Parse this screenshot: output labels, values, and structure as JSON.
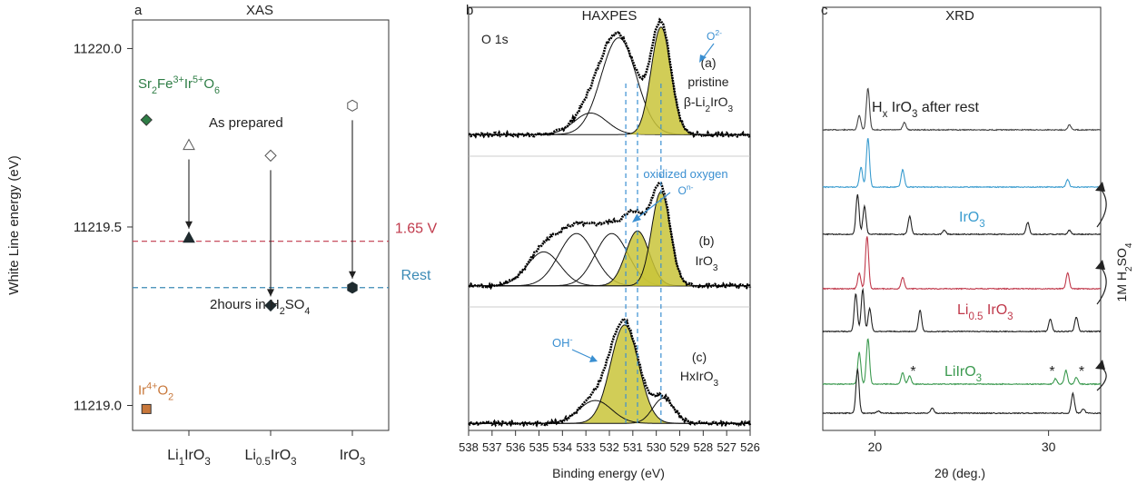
{
  "chart_data": [
    {
      "panel_label": "a",
      "type": "scatter",
      "title": "XAS",
      "ylabel": "White Line energy (eV)",
      "ylim": [
        11218.93,
        11220.08
      ],
      "y_ticks": [
        "11220.0",
        "11219.5",
        "11219.0"
      ],
      "y_tick_values": [
        11220.0,
        11219.5,
        11219.0
      ],
      "categories": [
        {
          "base": "Li",
          "sub": "1",
          "rest": "IrO",
          "sub2": "3"
        },
        {
          "base": "Li",
          "sub": "0.5",
          "rest": "IrO",
          "sub2": "3"
        },
        {
          "base": "IrO",
          "sub": "3",
          "rest": "",
          "sub2": ""
        }
      ],
      "as_prepared": {
        "label": "As prepared",
        "points": [
          {
            "x": 0,
            "y": 11219.73,
            "marker": "triangle"
          },
          {
            "x": 1,
            "y": 11219.7,
            "marker": "diamond"
          },
          {
            "x": 2,
            "y": 11219.84,
            "marker": "hexagon"
          }
        ]
      },
      "after": {
        "label_prefix": "2hours in H",
        "label_sub1": "2",
        "label_mid": "SO",
        "label_sub2": "4",
        "points": [
          {
            "x": 0,
            "y": 11219.47,
            "marker": "triangle"
          },
          {
            "x": 1,
            "y": 11219.28,
            "marker": "diamond"
          },
          {
            "x": 2,
            "y": 11219.33,
            "marker": "hexagon"
          }
        ]
      },
      "references": [
        {
          "x": -0.52,
          "y": 11219.8,
          "color": "#2e7d45",
          "marker": "diamond",
          "label_parts": [
            [
              "Sr",
              ""
            ],
            [
              "2",
              "sub"
            ],
            [
              "Fe",
              ""
            ],
            [
              "3+",
              "sup"
            ],
            [
              "Ir",
              ""
            ],
            [
              "5+",
              "sup"
            ],
            [
              "O",
              ""
            ],
            [
              "6",
              "sub"
            ]
          ]
        },
        {
          "x": -0.52,
          "y": 11218.99,
          "color": "#c8773a",
          "marker": "square",
          "label_parts": [
            [
              "Ir",
              ""
            ],
            [
              "4+",
              "sup"
            ],
            [
              "O",
              ""
            ],
            [
              "2",
              "sub"
            ]
          ]
        }
      ],
      "hlines": [
        {
          "y": 11219.46,
          "label": "1.65 V",
          "color": "#c0394b"
        },
        {
          "y": 11219.33,
          "label": "Rest",
          "color": "#3b8ab5"
        }
      ]
    },
    {
      "panel_label": "b",
      "type": "line",
      "title": "HAXPES",
      "xlabel": "Binding energy (eV)",
      "xlim": [
        538,
        526
      ],
      "x_ticks": [
        538,
        537,
        536,
        535,
        534,
        533,
        532,
        531,
        530,
        529,
        528,
        527,
        526
      ],
      "core_level": "O 1s",
      "fill_color": "#c9c43a",
      "vlines": [
        531.3,
        530.8,
        529.8
      ],
      "series": [
        {
          "id": "a",
          "labels": [
            "(a)",
            "pristine",
            "β-Li",
            "2",
            "IrO",
            "3"
          ],
          "annotation": {
            "text": "O",
            "sup": "2-"
          },
          "bg": 0.08,
          "peaks": [
            {
              "center": 531.6,
              "height": 0.72,
              "width": 0.75,
              "filled": false
            },
            {
              "center": 532.8,
              "height": 0.16,
              "width": 0.7,
              "filled": false
            },
            {
              "center": 529.8,
              "height": 0.8,
              "width": 0.42,
              "filled": true
            }
          ]
        },
        {
          "id": "b",
          "labels": [
            "(b)",
            "IrO",
            "3"
          ],
          "annotation": {
            "text": "oxidized oxygen",
            "line2": "O",
            "sup": "n-"
          },
          "bg": 0.05,
          "peaks": [
            {
              "center": 534.8,
              "height": 0.26,
              "width": 0.7,
              "filled": false
            },
            {
              "center": 533.4,
              "height": 0.4,
              "width": 0.75,
              "filled": false
            },
            {
              "center": 531.9,
              "height": 0.4,
              "width": 0.7,
              "filled": false
            },
            {
              "center": 530.8,
              "height": 0.42,
              "width": 0.5,
              "filled": true
            },
            {
              "center": 529.8,
              "height": 0.72,
              "width": 0.4,
              "filled": true
            }
          ]
        },
        {
          "id": "c",
          "labels": [
            "(c)",
            "HxIrO",
            "3"
          ],
          "annotation": {
            "text": "OH",
            "sup": "-"
          },
          "bg": 0.03,
          "peaks": [
            {
              "center": 531.35,
              "height": 0.86,
              "width": 0.6,
              "filled": true
            },
            {
              "center": 532.6,
              "height": 0.2,
              "width": 0.7,
              "filled": false
            },
            {
              "center": 529.7,
              "height": 0.22,
              "width": 0.45,
              "filled": false
            }
          ]
        }
      ]
    },
    {
      "panel_label": "c",
      "type": "line",
      "title": "XRD",
      "xlabel": "2θ (deg.)",
      "xlim": [
        17,
        33
      ],
      "x_ticks": [
        20,
        30
      ],
      "side_label": {
        "prefix": "1M H",
        "sub1": "2",
        "mid": "SO",
        "sub2": "4"
      },
      "series": [
        {
          "name": "top",
          "color": "#444444",
          "label_parts": [
            [
              "H",
              ""
            ],
            [
              "x",
              "sub"
            ],
            [
              " IrO",
              ""
            ],
            [
              "3",
              "sub"
            ],
            [
              " after rest",
              ""
            ]
          ],
          "peaks": [
            [
              19.1,
              0.35
            ],
            [
              19.6,
              1.0
            ],
            [
              21.7,
              0.18
            ],
            [
              31.2,
              0.12
            ]
          ]
        },
        {
          "name": "iro3",
          "color": "#3a9ccf",
          "label_parts": [
            [
              "IrO",
              ""
            ],
            [
              "3",
              "sub"
            ]
          ],
          "peaks": [
            [
              19.2,
              0.4
            ],
            [
              19.6,
              1.0
            ],
            [
              21.6,
              0.35
            ],
            [
              31.1,
              0.15
            ]
          ]
        },
        {
          "name": "iro3-black",
          "color": "#222222",
          "label_parts": [],
          "peaks": [
            [
              19.0,
              1.0
            ],
            [
              19.4,
              0.7
            ],
            [
              22.0,
              0.45
            ],
            [
              24.0,
              0.1
            ],
            [
              28.8,
              0.3
            ],
            [
              31.2,
              0.1
            ]
          ]
        },
        {
          "name": "li05",
          "color": "#c0394b",
          "label_parts": [
            [
              "Li",
              ""
            ],
            [
              "0.5",
              "sub"
            ],
            [
              " IrO",
              ""
            ],
            [
              "3",
              "sub"
            ]
          ],
          "peaks": [
            [
              19.1,
              0.3
            ],
            [
              19.55,
              1.0
            ],
            [
              21.6,
              0.22
            ],
            [
              31.1,
              0.3
            ]
          ]
        },
        {
          "name": "li05-black",
          "color": "#222222",
          "label_parts": [],
          "peaks": [
            [
              18.9,
              0.9
            ],
            [
              19.3,
              1.0
            ],
            [
              19.7,
              0.55
            ],
            [
              22.6,
              0.5
            ],
            [
              30.1,
              0.3
            ],
            [
              31.6,
              0.35
            ]
          ]
        },
        {
          "name": "liiro3",
          "color": "#3c9a50",
          "label_parts": [
            [
              "LiIrO",
              ""
            ],
            [
              "3",
              "sub"
            ]
          ],
          "peaks": [
            [
              19.1,
              0.7
            ],
            [
              19.6,
              1.0
            ],
            [
              21.6,
              0.25
            ],
            [
              22.0,
              0.18
            ],
            [
              30.4,
              0.12
            ],
            [
              31.0,
              0.3
            ],
            [
              31.6,
              0.15
            ]
          ]
        },
        {
          "name": "liiro3-black",
          "color": "#222222",
          "label_parts": [],
          "peaks": [
            [
              19.0,
              1.0
            ],
            [
              20.2,
              0.05
            ],
            [
              23.3,
              0.12
            ],
            [
              31.4,
              0.45
            ],
            [
              32.0,
              0.1
            ]
          ]
        }
      ],
      "stars": [
        {
          "x": 22.2,
          "series": 5,
          "text": "*"
        },
        {
          "x": 30.2,
          "series": 5,
          "text": "*"
        },
        {
          "x": 31.9,
          "series": 5,
          "text": "*"
        }
      ]
    }
  ]
}
